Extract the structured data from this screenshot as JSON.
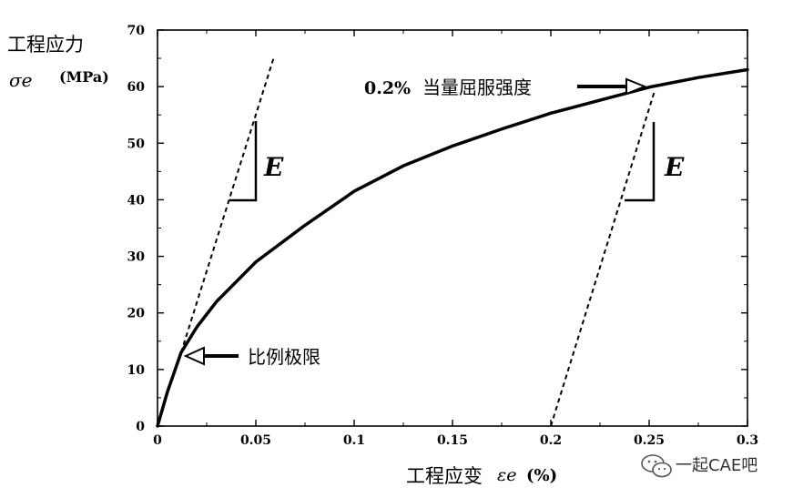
{
  "chart_data": {
    "type": "line",
    "ylabel": "工程应力",
    "ylabel_symbol": "σe",
    "ylabel_unit": "(MPa)",
    "xlabel": "工程应变",
    "xlabel_symbol": "εe",
    "xlabel_unit": "(%)",
    "xlim": [
      0,
      0.3
    ],
    "ylim": [
      0,
      70
    ],
    "x_ticks": [
      0,
      0.05,
      0.1,
      0.15,
      0.2,
      0.25,
      0.3
    ],
    "x_tick_labels": [
      "0",
      "0.05",
      "0.1",
      "0.15",
      "0.2",
      "0.25",
      "0.3"
    ],
    "y_ticks": [
      0,
      10,
      20,
      30,
      40,
      50,
      60,
      70
    ],
    "y_tick_labels": [
      "0",
      "10",
      "20",
      "30",
      "40",
      "50",
      "60",
      "70"
    ],
    "grid": false,
    "series": [
      {
        "style": "solid",
        "x": [
          0,
          0.005,
          0.012,
          0.02,
          0.03,
          0.05,
          0.075,
          0.1,
          0.125,
          0.15,
          0.175,
          0.2,
          0.225,
          0.25,
          0.275,
          0.3
        ],
        "y": [
          0,
          6,
          13,
          17.5,
          22,
          29,
          35.5,
          41.5,
          46,
          49.5,
          52.5,
          55.3,
          57.6,
          59.9,
          61.6,
          63
        ]
      },
      {
        "style": "dashed",
        "x": [
          0.012,
          0.059
        ],
        "y": [
          13,
          65
        ]
      },
      {
        "style": "dashed",
        "x": [
          0.2,
          0.253
        ],
        "y": [
          0,
          59.5
        ]
      }
    ],
    "annotations": [
      {
        "text": "0.2% ",
        "x": 0.253,
        "y": 59.5
      },
      {
        "text": "当量屈服强度",
        "x": 0.253,
        "y": 59.5
      },
      {
        "text": "比例极限",
        "x": 0.012,
        "y": 13
      },
      {
        "text": "E",
        "slope_at_x": 0.05,
        "slope_at_y": 40
      },
      {
        "text": "E",
        "slope_at_x": 0.25,
        "slope_at_y": 40
      }
    ]
  },
  "watermark": {
    "text": "一起CAE吧",
    "icon": "wechat-icon"
  }
}
